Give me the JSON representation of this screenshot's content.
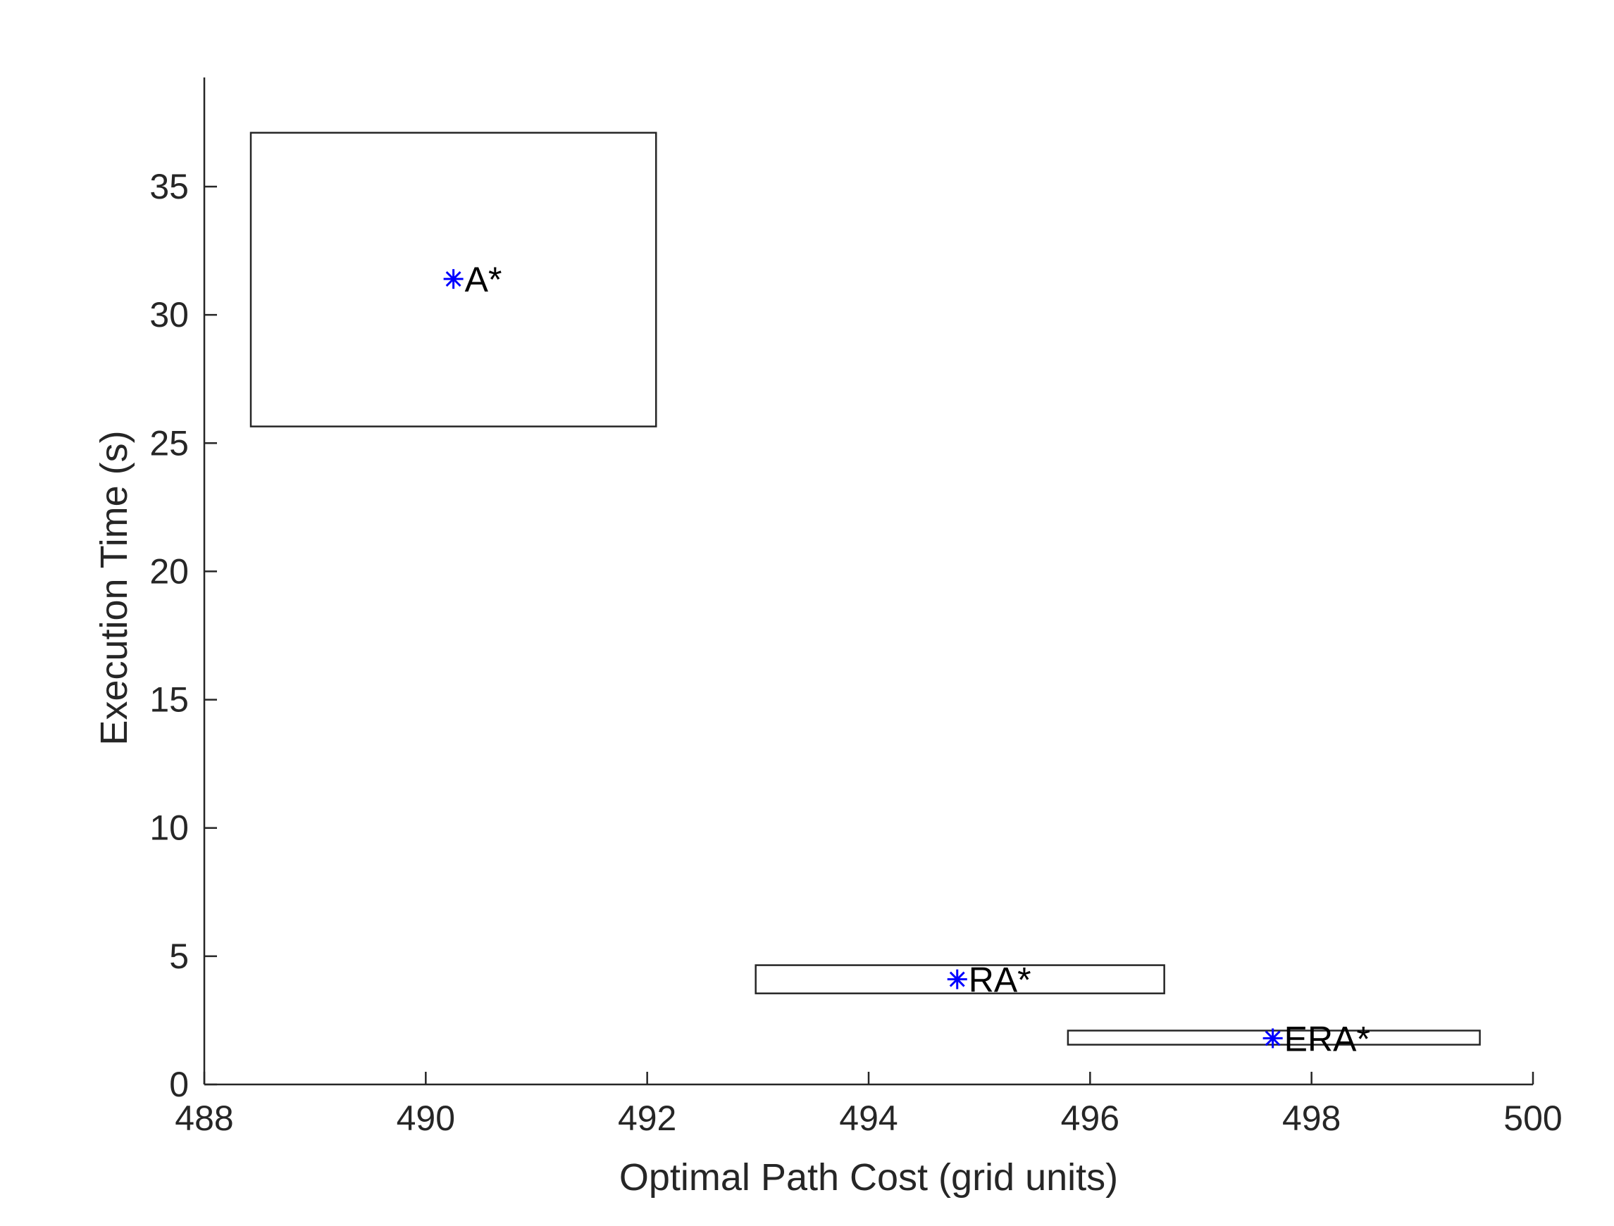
{
  "chart_data": {
    "type": "scatter",
    "title": "",
    "xlabel": "Optimal Path Cost (grid units)",
    "ylabel": "Execution Time (s)",
    "xlim": [
      488,
      500
    ],
    "ylim": [
      0,
      39
    ],
    "xticks": [
      488,
      490,
      492,
      494,
      496,
      498,
      500
    ],
    "yticks": [
      0,
      5,
      10,
      15,
      20,
      25,
      30,
      35
    ],
    "grid": false,
    "legend": "none",
    "marker": "asterisk",
    "marker_color": "#0000ff",
    "box_color": "#262626",
    "series": [
      {
        "name": "A*",
        "x": 490.25,
        "y": 31.4,
        "x_range": [
          488.42,
          492.08
        ],
        "y_range": [
          25.65,
          37.1
        ]
      },
      {
        "name": "RA*",
        "x": 494.8,
        "y": 4.1,
        "x_range": [
          492.98,
          496.67
        ],
        "y_range": [
          3.55,
          4.65
        ]
      },
      {
        "name": "ERA*",
        "x": 497.65,
        "y": 1.8,
        "x_range": [
          495.8,
          499.52
        ],
        "y_range": [
          1.55,
          2.1
        ]
      }
    ]
  }
}
